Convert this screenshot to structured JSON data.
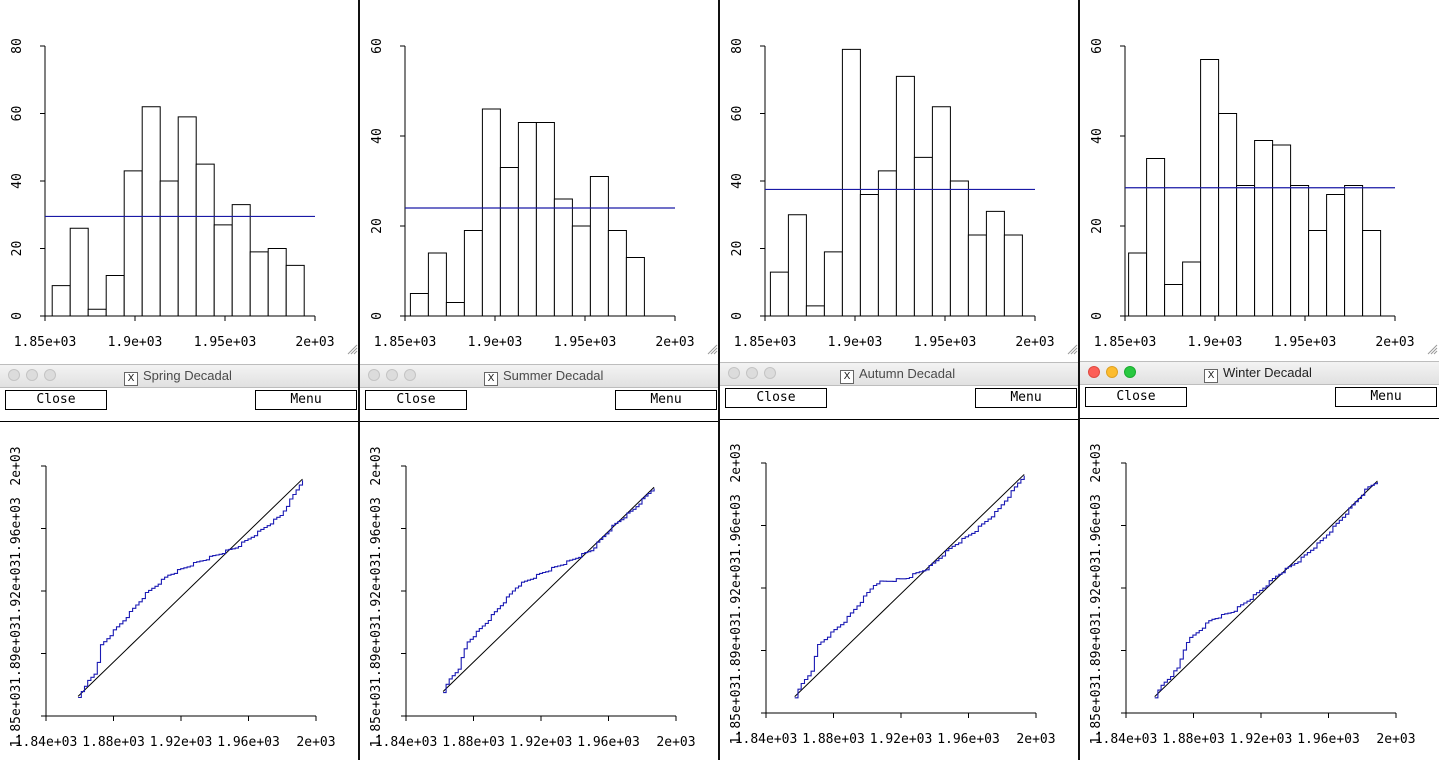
{
  "windows": [
    {
      "title": "Spring Decadal",
      "close_label": "Close",
      "menu_label": "Menu",
      "active": false,
      "histogram": {
        "type": "bar",
        "x_ticks": [
          "1.85e+03",
          "1.9e+03",
          "1.95e+03",
          "2e+03"
        ],
        "y_ticks": [
          "0",
          "20",
          "40",
          "60",
          "80"
        ],
        "xlim": [
          1850,
          2000
        ],
        "ylim": [
          0,
          80
        ],
        "bin_start": 1854,
        "bin_width": 10,
        "values": [
          9,
          26,
          2,
          12,
          43,
          62,
          40,
          59,
          45,
          27,
          33,
          19,
          20,
          15
        ],
        "mean_line": 29.5
      },
      "qq": {
        "type": "line",
        "x_ticks": [
          "1.84e+03",
          "1.88e+03",
          "1.92e+03",
          "1.96e+03",
          "2e+03"
        ],
        "y_ticks": [
          "1.85e+03",
          "1.89e+03",
          "1.92e+03",
          "1.96e+03",
          "2e+03"
        ],
        "xlim": [
          1840,
          2000
        ],
        "ylim": [
          1847,
          2000
        ],
        "range": [
          1859,
          1992
        ]
      }
    },
    {
      "title": "Summer Decadal",
      "close_label": "Close",
      "menu_label": "Menu",
      "active": false,
      "histogram": {
        "type": "bar",
        "x_ticks": [
          "1.85e+03",
          "1.9e+03",
          "1.95e+03",
          "2e+03"
        ],
        "y_ticks": [
          "0",
          "20",
          "40",
          "60"
        ],
        "xlim": [
          1850,
          2000
        ],
        "ylim": [
          0,
          60
        ],
        "bin_start": 1853,
        "bin_width": 10,
        "values": [
          5,
          14,
          3,
          19,
          46,
          33,
          43,
          43,
          26,
          20,
          31,
          19,
          13
        ],
        "mean_line": 24
      },
      "qq": {
        "type": "line",
        "x_ticks": [
          "1.84e+03",
          "1.88e+03",
          "1.92e+03",
          "1.96e+03",
          "2e+03"
        ],
        "y_ticks": [
          "1.85e+03",
          "1.89e+03",
          "1.92e+03",
          "1.96e+03",
          "2e+03"
        ],
        "xlim": [
          1840,
          2000
        ],
        "ylim": [
          1847,
          2000
        ],
        "range": [
          1862,
          1987
        ]
      }
    },
    {
      "title": "Autumn Decadal",
      "close_label": "Close",
      "menu_label": "Menu",
      "active": false,
      "histogram": {
        "type": "bar",
        "x_ticks": [
          "1.85e+03",
          "1.9e+03",
          "1.95e+03",
          "2e+03"
        ],
        "y_ticks": [
          "0",
          "20",
          "40",
          "60",
          "80"
        ],
        "xlim": [
          1850,
          2000
        ],
        "ylim": [
          0,
          80
        ],
        "bin_start": 1853,
        "bin_width": 10,
        "values": [
          13,
          30,
          3,
          19,
          79,
          36,
          43,
          71,
          47,
          62,
          40,
          24,
          31,
          24
        ],
        "mean_line": 37.5
      },
      "qq": {
        "type": "line",
        "x_ticks": [
          "1.84e+03",
          "1.88e+03",
          "1.92e+03",
          "1.96e+03",
          "2e+03"
        ],
        "y_ticks": [
          "1.85e+03",
          "1.89e+03",
          "1.92e+03",
          "1.96e+03",
          "2e+03"
        ],
        "xlim": [
          1840,
          2000
        ],
        "ylim": [
          1847,
          2000
        ],
        "range": [
          1857,
          1993
        ]
      }
    },
    {
      "title": "Winter Decadal",
      "close_label": "Close",
      "menu_label": "Menu",
      "active": true,
      "histogram": {
        "type": "bar",
        "x_ticks": [
          "1.85e+03",
          "1.9e+03",
          "1.95e+03",
          "2e+03"
        ],
        "y_ticks": [
          "0",
          "20",
          "40",
          "60"
        ],
        "xlim": [
          1850,
          2000
        ],
        "ylim": [
          0,
          60
        ],
        "bin_start": 1852,
        "bin_width": 10,
        "values": [
          14,
          35,
          7,
          12,
          57,
          45,
          29,
          39,
          38,
          29,
          19,
          27,
          29,
          19
        ],
        "mean_line": 28.5
      },
      "qq": {
        "type": "line",
        "x_ticks": [
          "1.84e+03",
          "1.88e+03",
          "1.92e+03",
          "1.96e+03",
          "2e+03"
        ],
        "y_ticks": [
          "1.85e+03",
          "1.89e+03",
          "1.92e+03",
          "1.96e+03",
          "2e+03"
        ],
        "xlim": [
          1840,
          2000
        ],
        "ylim": [
          1847,
          2000
        ],
        "range": [
          1857,
          1989
        ]
      }
    }
  ],
  "colors": {
    "bar_stroke": "#000000",
    "bar_fill": "#ffffff",
    "mean_line": "#1a1aa6",
    "qq_trace": "#1a1ab4",
    "reference_line": "#000000"
  }
}
